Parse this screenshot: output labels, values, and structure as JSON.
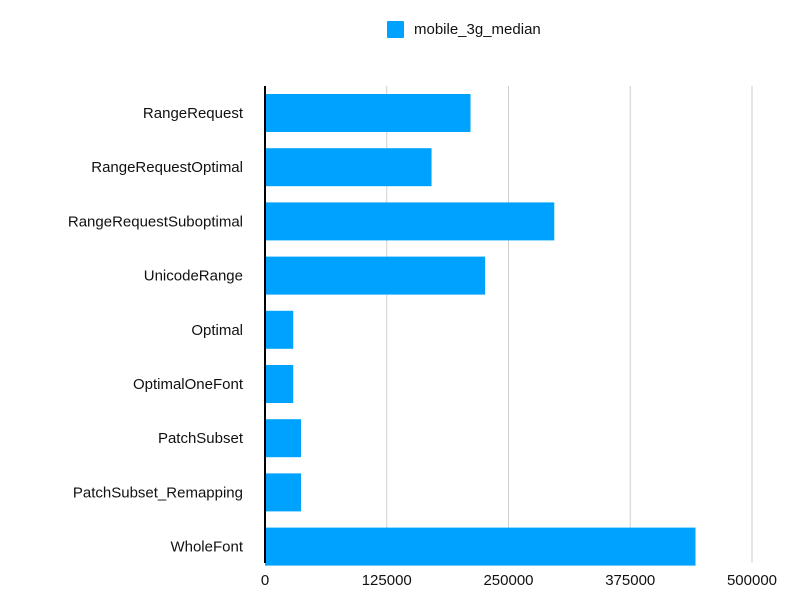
{
  "chart_data": {
    "type": "bar",
    "orientation": "horizontal",
    "categories": [
      "RangeRequest",
      "RangeRequestOptimal",
      "RangeRequestSuboptimal",
      "UnicodeRange",
      "Optimal",
      "OptimalOneFont",
      "PatchSubset",
      "PatchSubset_Remapping",
      "WholeFont"
    ],
    "series": [
      {
        "name": "mobile_3g_median",
        "color": "#00a2ff",
        "values": [
          211000,
          171000,
          297000,
          226000,
          29000,
          29000,
          37000,
          37000,
          442000
        ]
      }
    ],
    "xlim": [
      0,
      500000
    ],
    "xticks": [
      "0",
      "125000",
      "250000",
      "375000",
      "500000"
    ],
    "grid": true,
    "legend_position": "top"
  }
}
